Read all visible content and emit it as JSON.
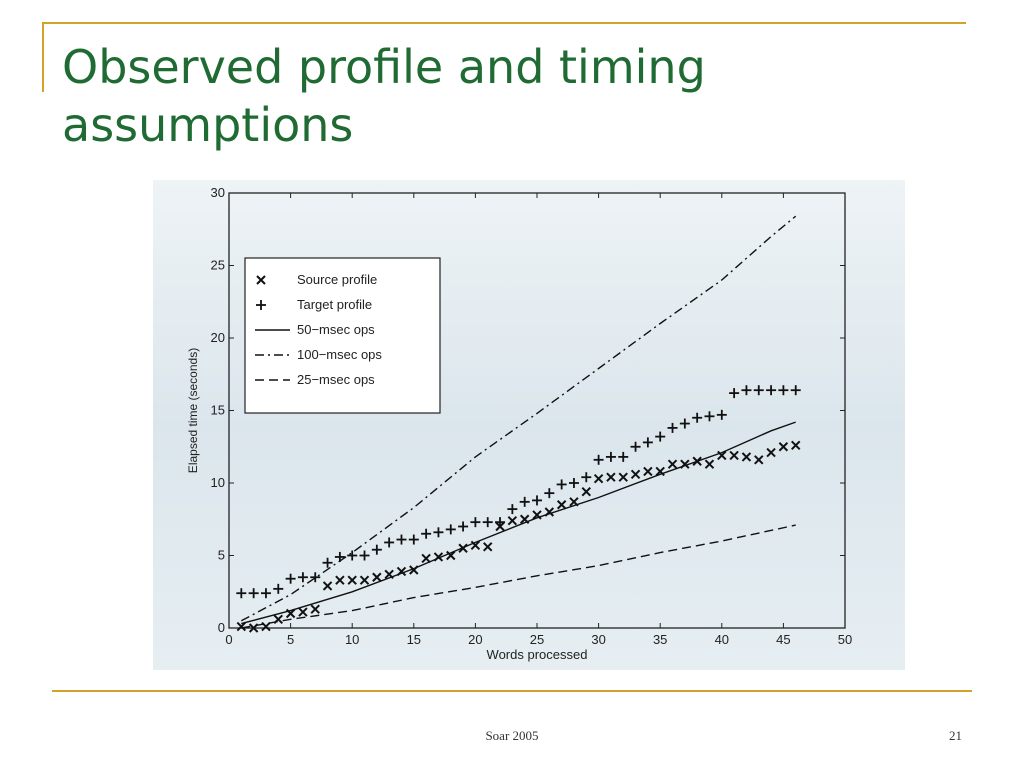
{
  "slide": {
    "title": "Observed profile and timing assumptions",
    "footer": "Soar 2005",
    "page_number": "21",
    "colors": {
      "title": "#1f6b33",
      "accent_rule": "#d4a12a",
      "plot_background": "#dfe9ef"
    }
  },
  "chart_data": {
    "type": "scatter",
    "title": "",
    "xlabel": "Words processed",
    "ylabel": "Elapsed time (seconds)",
    "xlim": [
      0,
      50
    ],
    "ylim": [
      0,
      30
    ],
    "xticks": [
      0,
      5,
      10,
      15,
      20,
      25,
      30,
      35,
      40,
      45,
      50
    ],
    "yticks": [
      0,
      5,
      10,
      15,
      20,
      25,
      30
    ],
    "grid": false,
    "legend_position": "upper-left",
    "series": [
      {
        "name": "Source profile",
        "kind": "marker",
        "marker": "x",
        "x": [
          1,
          2,
          3,
          4,
          5,
          6,
          7,
          8,
          9,
          10,
          11,
          12,
          13,
          14,
          15,
          16,
          17,
          18,
          19,
          20,
          21,
          22,
          23,
          24,
          25,
          26,
          27,
          28,
          29,
          30,
          31,
          32,
          33,
          34,
          35,
          36,
          37,
          38,
          39,
          40,
          41,
          42,
          43,
          44,
          45,
          46
        ],
        "y": [
          0.1,
          0.0,
          0.1,
          0.6,
          1.0,
          1.1,
          1.3,
          2.9,
          3.3,
          3.3,
          3.3,
          3.5,
          3.7,
          3.9,
          4.0,
          4.8,
          4.9,
          5.0,
          5.5,
          5.7,
          5.6,
          7.0,
          7.4,
          7.5,
          7.8,
          8.0,
          8.5,
          8.7,
          9.4,
          10.3,
          10.4,
          10.4,
          10.6,
          10.8,
          10.8,
          11.3,
          11.3,
          11.5,
          11.3,
          11.9,
          11.9,
          11.8,
          11.6,
          12.1,
          12.5,
          12.6
        ]
      },
      {
        "name": "Target profile",
        "kind": "marker",
        "marker": "+",
        "x": [
          1,
          2,
          3,
          4,
          5,
          6,
          7,
          8,
          9,
          10,
          11,
          12,
          13,
          14,
          15,
          16,
          17,
          18,
          19,
          20,
          21,
          22,
          23,
          24,
          25,
          26,
          27,
          28,
          29,
          30,
          31,
          32,
          33,
          34,
          35,
          36,
          37,
          38,
          39,
          40,
          41,
          42,
          43,
          44,
          45,
          46
        ],
        "y": [
          2.4,
          2.4,
          2.4,
          2.7,
          3.4,
          3.5,
          3.5,
          4.5,
          4.9,
          5.0,
          5.0,
          5.4,
          5.9,
          6.1,
          6.1,
          6.5,
          6.6,
          6.8,
          7.0,
          7.3,
          7.3,
          7.3,
          8.2,
          8.7,
          8.8,
          9.3,
          9.9,
          10.0,
          10.4,
          11.6,
          11.8,
          11.8,
          12.5,
          12.8,
          13.2,
          13.8,
          14.1,
          14.5,
          14.6,
          14.7,
          16.2,
          16.4,
          16.4,
          16.4,
          16.4,
          16.4
        ]
      },
      {
        "name": "50−msec ops",
        "kind": "line",
        "dash": "solid",
        "x": [
          1,
          5,
          10,
          15,
          20,
          25,
          30,
          35,
          40,
          44,
          46
        ],
        "y": [
          0.3,
          1.2,
          2.5,
          4.1,
          5.9,
          7.6,
          9.0,
          10.6,
          12.1,
          13.6,
          14.2
        ]
      },
      {
        "name": "100−msec ops",
        "kind": "line",
        "dash": "dashdot",
        "x": [
          1,
          5,
          10,
          15,
          20,
          25,
          30,
          35,
          40,
          44,
          46
        ],
        "y": [
          0.5,
          2.3,
          5.2,
          8.3,
          11.8,
          14.8,
          17.9,
          21.0,
          24.0,
          27.0,
          28.4
        ]
      },
      {
        "name": "25−msec ops",
        "kind": "line",
        "dash": "dashed",
        "x": [
          1,
          5,
          10,
          15,
          20,
          25,
          30,
          35,
          40,
          46
        ],
        "y": [
          0.0,
          0.6,
          1.2,
          2.1,
          2.8,
          3.6,
          4.3,
          5.2,
          6.0,
          7.1
        ]
      }
    ]
  }
}
